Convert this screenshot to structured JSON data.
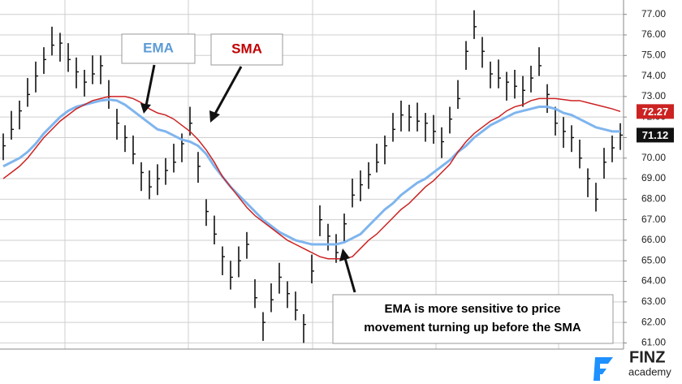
{
  "chart_data": {
    "type": "ohlc",
    "ylim": [
      60.7,
      77.7
    ],
    "yticks": [
      {
        "value": 61,
        "label": "61.00"
      },
      {
        "value": 62,
        "label": "62.00"
      },
      {
        "value": 63,
        "label": "63.00"
      },
      {
        "value": 64,
        "label": "64.00"
      },
      {
        "value": 65,
        "label": "65.00"
      },
      {
        "value": 66,
        "label": "66.00"
      },
      {
        "value": 67,
        "label": "67.00"
      },
      {
        "value": 68,
        "label": "68.00"
      },
      {
        "value": 69,
        "label": "69.00"
      },
      {
        "value": 70,
        "label": "70.00"
      },
      {
        "value": 71,
        "label": "71.00"
      },
      {
        "value": 72,
        "label": "72.00"
      },
      {
        "value": 73,
        "label": "73.00"
      },
      {
        "value": 74,
        "label": "74.00"
      },
      {
        "value": 75,
        "label": "75.00"
      },
      {
        "value": 76,
        "label": "76.00"
      },
      {
        "value": 77,
        "label": "77.00"
      }
    ],
    "grid": true,
    "price": {
      "color": "#111111",
      "end_label": "71.12",
      "close": [
        70.6,
        71.4,
        72.3,
        73.1,
        74.0,
        74.8,
        75.5,
        75.6,
        74.8,
        74.2,
        73.7,
        74.1,
        74.5,
        73.0,
        71.7,
        71.0,
        70.2,
        69.3,
        68.6,
        69.0,
        69.4,
        69.8,
        70.7,
        71.7,
        69.6,
        67.4,
        66.3,
        65.2,
        64.2,
        65.0,
        65.8,
        63.2,
        62.0,
        63.1,
        64.2,
        63.4,
        62.6,
        61.9,
        64.5,
        67.0,
        66.2,
        65.4,
        66.8,
        68.2,
        68.7,
        69.2,
        69.8,
        70.6,
        71.4,
        72.1,
        72.0,
        71.8,
        71.7,
        71.3,
        70.8,
        71.9,
        72.9,
        75.2,
        76.4,
        75.2,
        74.1,
        73.9,
        73.7,
        73.5,
        73.3,
        73.9,
        74.5,
        73.1,
        71.7,
        71.3,
        71.0,
        70.0,
        69.0,
        68.0,
        69.8,
        70.5,
        71.12
      ],
      "high": [
        71.2,
        72.3,
        72.8,
        73.9,
        74.7,
        75.4,
        76.4,
        76.1,
        75.6,
        74.9,
        74.3,
        75.0,
        75.0,
        73.8,
        72.4,
        71.6,
        71.1,
        69.8,
        69.4,
        69.7,
        70.0,
        70.7,
        71.2,
        72.5,
        70.3,
        68.0,
        67.2,
        65.7,
        65.0,
        65.7,
        66.4,
        64.1,
        62.5,
        63.9,
        64.9,
        64.0,
        63.5,
        62.4,
        65.3,
        67.7,
        66.8,
        66.3,
        67.3,
        69.0,
        69.4,
        69.8,
        70.7,
        71.1,
        72.2,
        72.8,
        72.6,
        72.7,
        72.2,
        72.1,
        71.5,
        72.5,
        73.8,
        75.7,
        77.2,
        75.9,
        74.7,
        74.8,
        74.2,
        74.3,
        74.0,
        74.5,
        75.4,
        73.6,
        72.5,
        72.0,
        71.6,
        70.9,
        69.5,
        68.8,
        70.5,
        71.1,
        71.7
      ],
      "low": [
        69.9,
        70.9,
        71.4,
        72.5,
        73.2,
        74.1,
        75.0,
        74.7,
        74.2,
        73.4,
        73.0,
        73.6,
        73.6,
        72.4,
        70.9,
        70.3,
        69.7,
        68.4,
        68.0,
        68.2,
        68.7,
        69.3,
        69.8,
        71.1,
        68.8,
        66.7,
        65.8,
        64.3,
        63.6,
        64.2,
        65.1,
        62.7,
        61.1,
        62.5,
        63.4,
        62.7,
        62.1,
        61.0,
        63.9,
        66.2,
        65.5,
        64.9,
        65.9,
        67.6,
        67.9,
        68.5,
        69.3,
        69.7,
        70.8,
        71.3,
        71.3,
        71.3,
        70.8,
        70.7,
        70.0,
        71.2,
        72.4,
        74.3,
        75.8,
        74.4,
        73.4,
        73.4,
        72.8,
        72.9,
        72.5,
        73.2,
        74.0,
        72.2,
        71.1,
        70.5,
        70.3,
        69.5,
        68.1,
        67.4,
        69.0,
        69.8,
        70.4
      ]
    },
    "lines": [
      {
        "color": "#7fb5ee",
        "values": [
          69.6,
          69.8,
          70.0,
          70.3,
          70.7,
          71.2,
          71.6,
          72.0,
          72.3,
          72.5,
          72.6,
          72.7,
          72.8,
          72.85,
          72.8,
          72.6,
          72.3,
          72.0,
          71.7,
          71.4,
          71.3,
          71.1,
          70.9,
          70.8,
          70.6,
          70.2,
          69.6,
          69.1,
          68.6,
          68.2,
          67.8,
          67.4,
          67.0,
          66.7,
          66.4,
          66.2,
          66.0,
          65.9,
          65.8,
          65.8,
          65.8,
          65.8,
          65.9,
          66.1,
          66.3,
          66.7,
          67.1,
          67.5,
          67.8,
          68.2,
          68.5,
          68.8,
          69.0,
          69.3,
          69.6,
          69.9,
          70.3,
          70.6,
          71.0,
          71.3,
          71.6,
          71.8,
          72.0,
          72.2,
          72.3,
          72.4,
          72.5,
          72.5,
          72.4,
          72.2,
          72.1,
          71.9,
          71.7,
          71.5,
          71.4,
          71.3,
          71.3
        ]
      },
      {
        "color": "#cc2222",
        "end_label": "72.27",
        "values": [
          69.0,
          69.3,
          69.6,
          70.0,
          70.5,
          71.0,
          71.4,
          71.8,
          72.1,
          72.4,
          72.6,
          72.8,
          72.9,
          73.0,
          73.0,
          73.0,
          72.9,
          72.7,
          72.4,
          72.2,
          72.1,
          71.9,
          71.6,
          71.3,
          70.9,
          70.4,
          69.8,
          69.1,
          68.6,
          68.1,
          67.6,
          67.2,
          66.9,
          66.6,
          66.3,
          66.0,
          65.8,
          65.6,
          65.4,
          65.2,
          65.1,
          65.1,
          65.1,
          65.2,
          65.6,
          66.0,
          66.3,
          66.7,
          67.1,
          67.5,
          67.8,
          68.2,
          68.6,
          68.9,
          69.3,
          69.7,
          70.3,
          70.8,
          71.2,
          71.5,
          71.8,
          72.0,
          72.3,
          72.5,
          72.6,
          72.8,
          72.9,
          72.9,
          72.9,
          72.85,
          72.8,
          72.8,
          72.7,
          72.6,
          72.5,
          72.4,
          72.27
        ]
      }
    ],
    "annotations": [
      {
        "text": "EMA",
        "color": "#5b9bd5"
      },
      {
        "text": "SMA",
        "color": "#c00000"
      },
      {
        "lines": [
          "EMA is more sensitive to price",
          "movement turning up before the SMA"
        ],
        "color": "#000000"
      }
    ]
  },
  "logo": {
    "name": "FINZ",
    "tagline": "academy"
  }
}
